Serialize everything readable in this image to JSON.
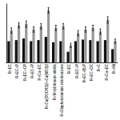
{
  "chart_data": {
    "type": "bar",
    "categories": [
      "R+EC",
      "R+EC+P",
      "R+EC+CP",
      "R+EC+P",
      "R+Cu+EC",
      "R+Cu(OOCH3)2+Cu(NO3)2",
      "R+Molybdenum nitride",
      "R+Diaphenylamine nitrobenzene",
      "R+EC",
      "R+EC+P",
      "R+EC+BLP",
      "R+EC+DC",
      "R+C",
      "R+Cu+EC",
      "R+AN"
    ],
    "series": [
      {
        "color": "#111111",
        "values": [
          4.0,
          4.2,
          4.5,
          4.0,
          4.2,
          4.8,
          3.8,
          4.0,
          2.0,
          4.0,
          4.3,
          4.2,
          4.0,
          4.2,
          2.5
        ]
      },
      {
        "color": "#999999",
        "values": [
          6.0,
          7.0,
          7.2,
          6.2,
          6.8,
          9.8,
          6.5,
          6.8,
          3.2,
          5.5,
          6.2,
          6.5,
          5.8,
          8.0,
          4.0
        ],
        "errors": [
          0.5,
          0.5,
          0.6,
          0.5,
          0.5,
          0.5,
          0.5,
          0.5,
          0.4,
          0.5,
          0.5,
          0.5,
          0.5,
          0.6,
          0.4
        ]
      }
    ],
    "ylim": [
      0,
      11
    ],
    "tick_labels": "x",
    "grid": false
  }
}
